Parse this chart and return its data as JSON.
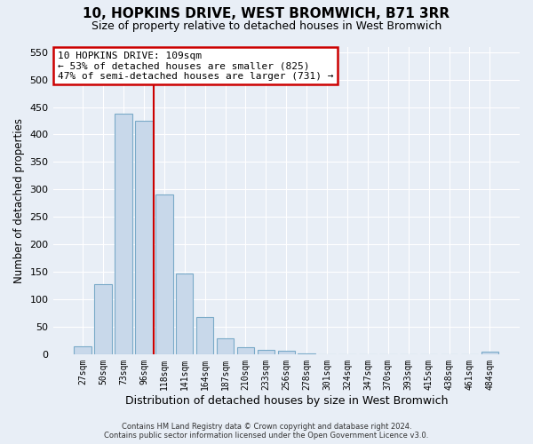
{
  "title": "10, HOPKINS DRIVE, WEST BROMWICH, B71 3RR",
  "subtitle": "Size of property relative to detached houses in West Bromwich",
  "xlabel": "Distribution of detached houses by size in West Bromwich",
  "ylabel": "Number of detached properties",
  "bar_labels": [
    "27sqm",
    "50sqm",
    "73sqm",
    "96sqm",
    "118sqm",
    "141sqm",
    "164sqm",
    "187sqm",
    "210sqm",
    "233sqm",
    "256sqm",
    "278sqm",
    "301sqm",
    "324sqm",
    "347sqm",
    "370sqm",
    "393sqm",
    "415sqm",
    "438sqm",
    "461sqm",
    "484sqm"
  ],
  "bar_values": [
    15,
    128,
    438,
    425,
    290,
    147,
    67,
    29,
    13,
    8,
    6,
    1,
    0,
    0,
    0,
    0,
    0,
    0,
    0,
    0,
    5
  ],
  "bar_color": "#c8d8ea",
  "bar_edge_color": "#7aaac8",
  "ylim": [
    0,
    560
  ],
  "yticks": [
    0,
    50,
    100,
    150,
    200,
    250,
    300,
    350,
    400,
    450,
    500,
    550
  ],
  "property_label": "10 HOPKINS DRIVE: 109sqm",
  "annotation_line1": "← 53% of detached houses are smaller (825)",
  "annotation_line2": "47% of semi-detached houses are larger (731) →",
  "vline_color": "#cc0000",
  "vline_x_index": 3.47,
  "annotation_box_color": "#cc0000",
  "footer_line1": "Contains HM Land Registry data © Crown copyright and database right 2024.",
  "footer_line2": "Contains public sector information licensed under the Open Government Licence v3.0.",
  "background_color": "#e8eef6",
  "plot_bg_color": "#e8eef6",
  "grid_color": "#ffffff",
  "title_fontsize": 11,
  "subtitle_fontsize": 9
}
